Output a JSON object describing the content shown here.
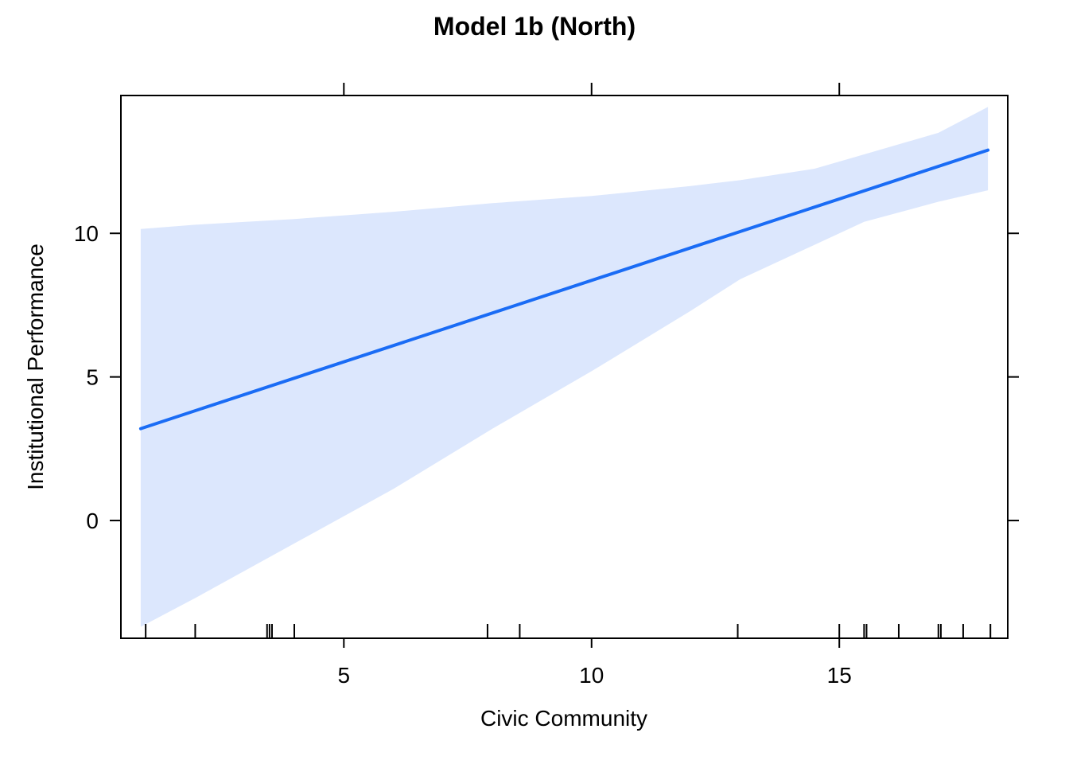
{
  "chart_data": {
    "type": "line",
    "title": "Model 1b (North)",
    "xlabel": "Civic Community",
    "ylabel": "Institutional Performance",
    "xlim": [
      0.5,
      18.4
    ],
    "ylim": [
      -4.1,
      14.8
    ],
    "x_ticks": [
      5,
      10,
      15
    ],
    "x_tick_labels": [
      "5",
      "10",
      "15"
    ],
    "y_ticks": [
      0,
      5,
      10
    ],
    "y_tick_labels": [
      "0",
      "5",
      "10"
    ],
    "grid": false,
    "legend": "none",
    "series": [
      {
        "x": [
          0.9,
          18.0
        ],
        "y": [
          3.2,
          12.9
        ],
        "color": "#1a6cf5"
      }
    ],
    "confidence_band": {
      "x": [
        0.9,
        2.0,
        4.0,
        6.0,
        8.0,
        10.0,
        12.0,
        13.0,
        14.5,
        15.5,
        17.0,
        18.0
      ],
      "lower": [
        -3.7,
        -2.7,
        -0.8,
        1.1,
        3.2,
        5.2,
        7.3,
        8.4,
        9.6,
        10.4,
        11.1,
        11.5
      ],
      "upper": [
        10.15,
        10.3,
        10.5,
        10.75,
        11.05,
        11.3,
        11.65,
        11.85,
        12.25,
        12.75,
        13.5,
        14.4
      ],
      "color": "#dce7fd"
    },
    "rug_x": [
      1.0,
      2.0,
      3.45,
      3.5,
      3.55,
      4.0,
      7.9,
      8.55,
      12.95,
      15.0,
      15.5,
      15.55,
      16.2,
      17.0,
      17.05,
      17.5,
      18.05
    ]
  }
}
